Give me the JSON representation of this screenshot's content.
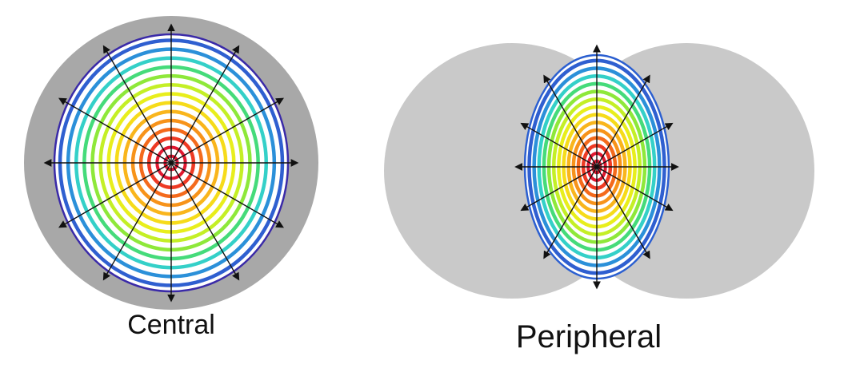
{
  "panels": {
    "central": {
      "caption": "Central",
      "ring_count": 14
    },
    "peripheral": {
      "caption": "Peripheral",
      "ring_count": 14
    }
  },
  "colors": {
    "background_disk": "#c9c9c9",
    "central_background_disk": "#a8a8a8",
    "ring_colors": [
      "#e01830",
      "#e01830",
      "#ee3a24",
      "#f46a1c",
      "#f7931a",
      "#f9b51c",
      "#f6db1a",
      "#e8ee1c",
      "#c4ef26",
      "#8ee83a",
      "#45db7a",
      "#34d0c8",
      "#2b90d9",
      "#2f5fd0"
    ],
    "arrow": "#111111",
    "outer_rim": "#3a2aa8"
  }
}
